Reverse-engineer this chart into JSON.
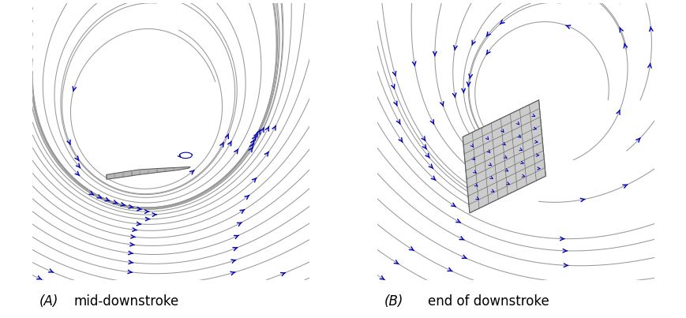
{
  "fig_width": 8.7,
  "fig_height": 4.03,
  "dpi": 100,
  "background_color": "#ffffff",
  "label_A": "(A)",
  "label_B": "(B)",
  "caption_A": "mid-downstroke",
  "caption_B": "end of downstroke",
  "streamline_color": "#999999",
  "arrow_color": "#0000bb",
  "wing_edge_color": "#444444",
  "wing_fill_color": "#b0b0b0",
  "grid_color": "#666666",
  "font_size_label": 12,
  "font_size_caption": 12,
  "streamline_lw": 0.75,
  "arrow_size": 0.055
}
